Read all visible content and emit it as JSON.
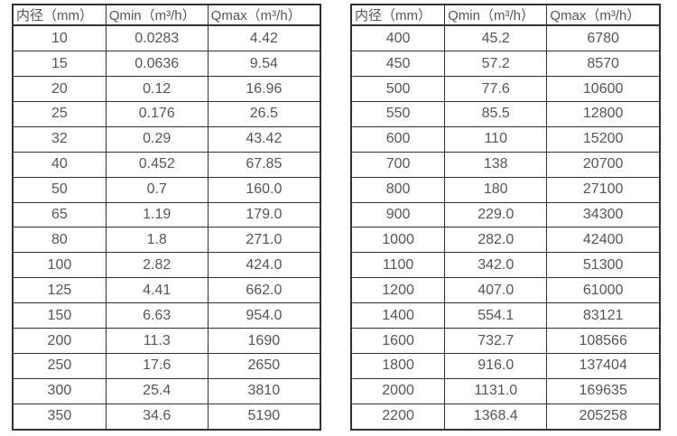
{
  "colors": {
    "background": "#ffffff",
    "border": "#323232",
    "text": "#555555"
  },
  "tables": [
    {
      "name": "flow-spec-table-small-diameters",
      "headers": [
        "内径（mm）",
        "Qmin（m³/h）",
        "Qmax（m³/h）"
      ],
      "rows": [
        [
          "10",
          "0.0283",
          "4.42"
        ],
        [
          "15",
          "0.0636",
          "9.54"
        ],
        [
          "20",
          "0.12",
          "16.96"
        ],
        [
          "25",
          "0.176",
          "26.5"
        ],
        [
          "32",
          "0.29",
          "43.42"
        ],
        [
          "40",
          "0.452",
          "67.85"
        ],
        [
          "50",
          "0.7",
          "160.0"
        ],
        [
          "65",
          "1.19",
          "179.0"
        ],
        [
          "80",
          "1.8",
          "271.0"
        ],
        [
          "100",
          "2.82",
          "424.0"
        ],
        [
          "125",
          "4.41",
          "662.0"
        ],
        [
          "150",
          "6.63",
          "954.0"
        ],
        [
          "200",
          "11.3",
          "1690"
        ],
        [
          "250",
          "17.6",
          "2650"
        ],
        [
          "300",
          "25.4",
          "3810"
        ],
        [
          "350",
          "34.6",
          "5190"
        ]
      ]
    },
    {
      "name": "flow-spec-table-large-diameters",
      "headers": [
        "内径（mm）",
        "Qmin（m³/h）",
        "Qmax（m³/h）"
      ],
      "rows": [
        [
          "400",
          "45.2",
          "6780"
        ],
        [
          "450",
          "57.2",
          "8570"
        ],
        [
          "500",
          "77.6",
          "10600"
        ],
        [
          "550",
          "85.5",
          "12800"
        ],
        [
          "600",
          "110",
          "15200"
        ],
        [
          "700",
          "138",
          "20700"
        ],
        [
          "800",
          "180",
          "27100"
        ],
        [
          "900",
          "229.0",
          "34300"
        ],
        [
          "1000",
          "282.0",
          "42400"
        ],
        [
          "1100",
          "342.0",
          "51300"
        ],
        [
          "1200",
          "407.0",
          "61000"
        ],
        [
          "1400",
          "554.1",
          "83121"
        ],
        [
          "1600",
          "732.7",
          "108566"
        ],
        [
          "1800",
          "916.0",
          "137404"
        ],
        [
          "2000",
          "1131.0",
          "169635"
        ],
        [
          "2200",
          "1368.4",
          "205258"
        ]
      ]
    }
  ]
}
